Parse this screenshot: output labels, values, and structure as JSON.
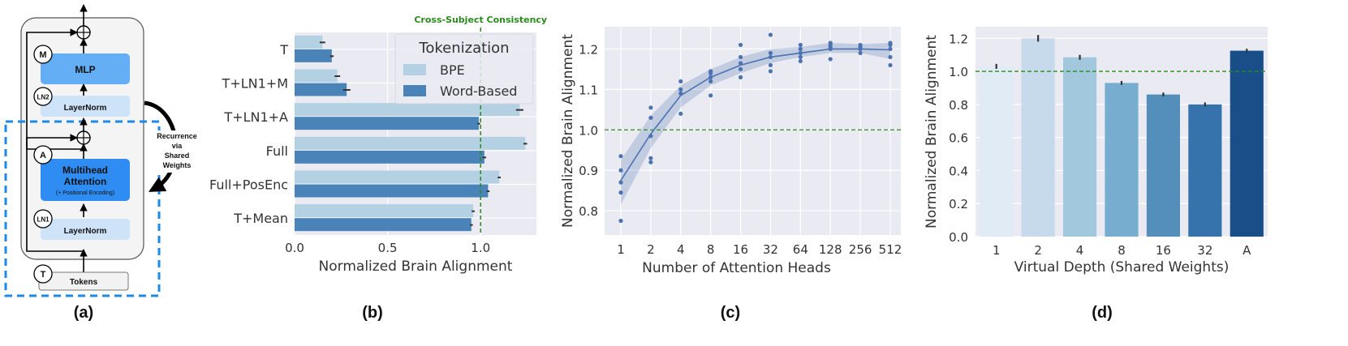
{
  "panel_labels": [
    "(a)",
    "(b)",
    "(c)",
    "(d)"
  ],
  "diagram": {
    "letters": {
      "m": "M",
      "ln2": "LN2",
      "a": "A",
      "ln1": "LN1",
      "t": "T"
    },
    "mlp": "MLP",
    "layernorm_top": "LayerNorm",
    "attention_title": "Multihead",
    "attention_title2": "Attention",
    "attention_sub": "(+ Positional Encoding)",
    "layernorm_bottom": "LayerNorm",
    "tokens": "Tokens",
    "recurrence": [
      "Recurrence",
      "via",
      "Shared",
      "Weights"
    ],
    "colors": {
      "mlp": "#64aef5",
      "attention": "#2f8cf2",
      "layernorm": "#cfe3f8",
      "dashed": "#1e8ae6"
    }
  },
  "chart_data": [
    {
      "type": "bar",
      "orientation": "horizontal",
      "categories": [
        "T",
        "T+LN1+M",
        "T+LN1+A",
        "Full",
        "Full+PosEnc",
        "T+Mean"
      ],
      "series": [
        {
          "name": "BPE",
          "values": [
            0.15,
            0.23,
            1.21,
            1.24,
            1.1,
            0.96
          ],
          "errors": [
            0.015,
            0.015,
            0.02,
            0.01,
            0.008,
            0.008
          ],
          "color": "#b3d1e3"
        },
        {
          "name": "Word-Based",
          "values": [
            0.2,
            0.28,
            0.99,
            1.02,
            1.04,
            0.95
          ],
          "errors": [
            0.01,
            0.02,
            0.008,
            0.01,
            0.008,
            0.008
          ],
          "color": "#4a83b8"
        }
      ],
      "xlabel": "Normalized Brain Alignment",
      "xlim": [
        0,
        1.3
      ],
      "xticks": [
        0.0,
        0.5,
        1.0
      ],
      "xticklabels": [
        "0.0",
        "0.5",
        "1.0"
      ],
      "legend_title": "Tokenization",
      "legend_position": "top-right",
      "reference_line": {
        "x": 1.0,
        "label": "Cross-Subject Consistency",
        "color": "#2a8a1c"
      },
      "grid": true
    },
    {
      "type": "line",
      "x": [
        "1",
        "2",
        "4",
        "8",
        "16",
        "32",
        "64",
        "128",
        "256",
        "512"
      ],
      "mean": [
        0.875,
        0.99,
        1.085,
        1.13,
        1.16,
        1.18,
        1.19,
        1.2,
        1.2,
        1.198
      ],
      "ci_lower": [
        0.815,
        0.955,
        1.055,
        1.11,
        1.14,
        1.165,
        1.18,
        1.19,
        1.19,
        1.175
      ],
      "ci_upper": [
        0.925,
        1.035,
        1.11,
        1.15,
        1.18,
        1.2,
        1.205,
        1.215,
        1.212,
        1.215
      ],
      "points": [
        [
          0.775,
          0.845,
          0.87,
          0.9,
          0.935
        ],
        [
          0.92,
          0.93,
          0.985,
          1.03,
          1.055
        ],
        [
          1.04,
          1.09,
          1.1,
          1.12
        ],
        [
          1.085,
          1.12,
          1.13,
          1.14,
          1.145
        ],
        [
          1.13,
          1.15,
          1.165,
          1.18,
          1.21
        ],
        [
          1.145,
          1.16,
          1.18,
          1.19,
          1.235
        ],
        [
          1.17,
          1.18,
          1.19,
          1.2,
          1.21
        ],
        [
          1.175,
          1.2,
          1.205,
          1.21,
          1.215
        ],
        [
          1.19,
          1.2,
          1.205,
          1.21
        ],
        [
          1.16,
          1.18,
          1.2,
          1.21,
          1.215
        ]
      ],
      "xlabel": "Number of Attention Heads",
      "ylabel": "Normalized Brain Alignment",
      "ylim": [
        0.74,
        1.255
      ],
      "yticks": [
        0.8,
        0.9,
        1.0,
        1.1,
        1.2
      ],
      "yticklabels": [
        "0.8",
        "0.9",
        "1.0",
        "1.1",
        "1.2"
      ],
      "reference_line": {
        "y": 1.0,
        "color": "#2a8a1c"
      },
      "color": "#4c72b0",
      "grid": true
    },
    {
      "type": "bar",
      "categories": [
        "1",
        "2",
        "4",
        "8",
        "16",
        "32",
        "A"
      ],
      "values": [
        1.03,
        1.2,
        1.085,
        0.93,
        0.86,
        0.8,
        1.125
      ],
      "errors": [
        0.015,
        0.02,
        0.015,
        0.012,
        0.012,
        0.012,
        0.012
      ],
      "colors": [
        "#e0ebf5",
        "#c6daec",
        "#a2c8de",
        "#77adcf",
        "#548fbc",
        "#3673ad",
        "#1a4e89"
      ],
      "xlabel": "Virtual Depth (Shared Weights)",
      "ylabel": "Normalized Brain Alignment",
      "ylim": [
        0,
        1.27
      ],
      "yticks": [
        0.0,
        0.2,
        0.4,
        0.6,
        0.8,
        1.0,
        1.2
      ],
      "yticklabels": [
        "0.0",
        "0.2",
        "0.4",
        "0.6",
        "0.8",
        "1.0",
        "1.2"
      ],
      "reference_line": {
        "y": 1.0,
        "color": "#2a8a1c"
      },
      "grid": true
    }
  ]
}
